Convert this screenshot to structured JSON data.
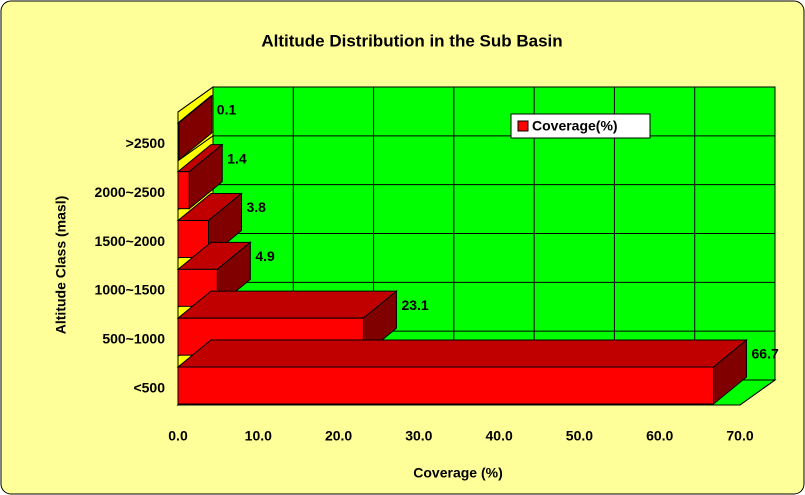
{
  "chart_data": {
    "type": "bar3d_horizontal",
    "title": "Altitude Distribution in the Sub Basin",
    "x_label": "Coverage (%)",
    "y_label": "Altitude Class (masl)",
    "categories": [
      "<500",
      "500~1000",
      "1000~1500",
      "1500~2000",
      "2000~2500",
      ">2500"
    ],
    "series": [
      {
        "name": "Coverage(%)",
        "color": "#ff0000",
        "values": [
          66.7,
          23.1,
          4.9,
          3.8,
          1.4,
          0.1
        ]
      }
    ],
    "xlim": [
      0,
      70
    ],
    "xticks": [
      {
        "value": 0,
        "label": "0.0"
      },
      {
        "value": 10,
        "label": "10.0"
      },
      {
        "value": 20,
        "label": "20.0"
      },
      {
        "value": 30,
        "label": "30.0"
      },
      {
        "value": 40,
        "label": "40.0"
      },
      {
        "value": 50,
        "label": "50.0"
      },
      {
        "value": 60,
        "label": "60.0"
      },
      {
        "value": 70,
        "label": "70.0"
      }
    ],
    "grid": true,
    "legend": "top-right"
  }
}
